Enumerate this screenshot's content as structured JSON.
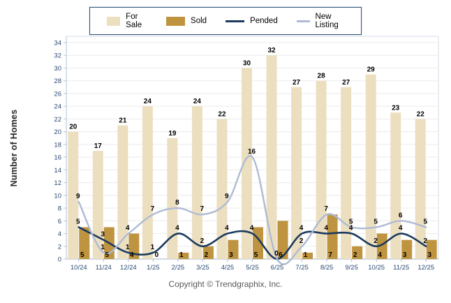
{
  "legend": {
    "items": [
      {
        "label": "For Sale",
        "type": "swatch",
        "color": "#ecdfc0"
      },
      {
        "label": "Sold",
        "type": "swatch",
        "color": "#bf9440"
      },
      {
        "label": "Pended",
        "type": "line",
        "color": "#1b3a5e"
      },
      {
        "label": "New Listing",
        "type": "line",
        "color": "#aebbd3"
      }
    ]
  },
  "footer": {
    "copyright": "Copyright © Trendgraphix, Inc."
  },
  "chart_data": {
    "type": "bar",
    "subtype": "grouped-bars-with-smoothed-lines",
    "categories": [
      "10/24",
      "11/24",
      "12/24",
      "1/25",
      "2/25",
      "3/25",
      "4/25",
      "5/25",
      "6/25",
      "7/25",
      "8/25",
      "9/25",
      "10/25",
      "11/25",
      "12/25"
    ],
    "series": [
      {
        "name": "For Sale",
        "type": "bar",
        "color": "#ecdfc0",
        "values": [
          20,
          17,
          21,
          24,
          19,
          24,
          22,
          30,
          32,
          27,
          28,
          27,
          29,
          23,
          22
        ]
      },
      {
        "name": "Sold",
        "type": "bar",
        "color": "#bf9440",
        "values": [
          5,
          5,
          4,
          0,
          1,
          2,
          3,
          5,
          6,
          1,
          7,
          2,
          4,
          3,
          3
        ]
      },
      {
        "name": "Pended",
        "type": "line",
        "color": "#1b3a5e",
        "values": [
          5,
          3,
          1,
          1,
          4,
          2,
          4,
          4,
          0,
          4,
          4,
          4,
          2,
          4,
          2
        ]
      },
      {
        "name": "New Listing",
        "type": "line",
        "color": "#aebbd3",
        "values": [
          9,
          1,
          4,
          7,
          8,
          7,
          9,
          16,
          0,
          2,
          7,
          5,
          5,
          6,
          5
        ]
      }
    ],
    "title": "",
    "xlabel": "",
    "ylabel": "Number of Homes",
    "ylim": [
      0,
      34
    ],
    "ytick_step": 2,
    "grid": true,
    "legend_position": "top",
    "label_color": "#000000",
    "tick_color": "#2a4a73",
    "gridline_color": "#ebebeb",
    "axis_color": "#9db1cf"
  }
}
